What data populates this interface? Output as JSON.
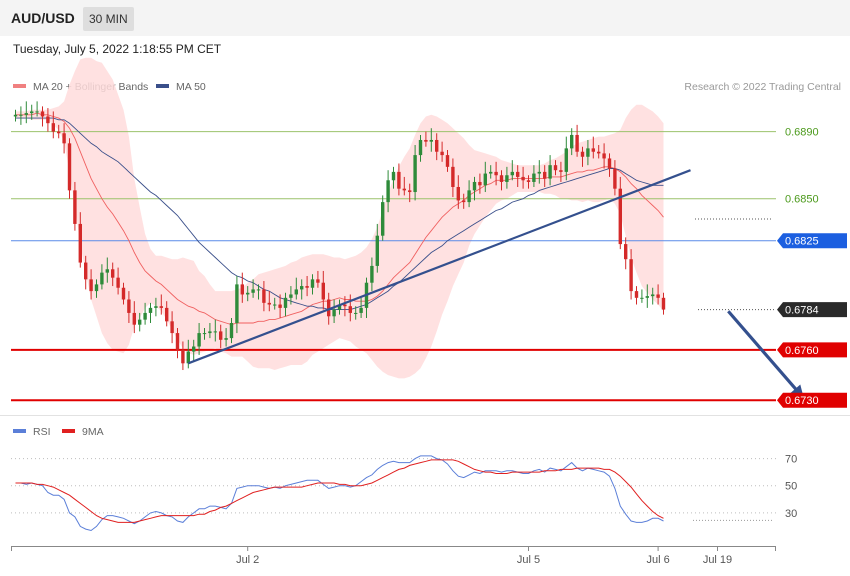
{
  "header": {
    "symbol": "AUD/USD",
    "timeframe": "30 MIN"
  },
  "datetime": "Tuesday, July 5, 2022 1:18:55 PM CET",
  "copyright": "Research © 2022 Trading Central",
  "colors": {
    "bull": "#2e8b3a",
    "bear": "#d42a2a",
    "band": "#ffdcdc",
    "ma20": "#f06060",
    "ma50": "#3a4f8a",
    "pivot": "#1c5fe0",
    "support": "#e00000",
    "resistance": "#9bc26b",
    "rsi": "#5b7fd8",
    "rsi_ma": "#e02020"
  },
  "chart_data": [
    {
      "type": "candlestick",
      "title": "",
      "legend": [
        {
          "name": "MA 20 + Bollinger Bands",
          "color": "#f08080"
        },
        {
          "name": "MA 50",
          "color": "#3a4f8a"
        }
      ],
      "legend_position": "top-left",
      "ylim": [
        0.6723,
        0.691
      ],
      "x_ticks": [
        {
          "label": "Jul 2",
          "index": 43
        },
        {
          "label": "Jul 5",
          "index": 95
        },
        {
          "label": "Jul 6",
          "index": 119
        },
        {
          "label": "Jul 19",
          "index": 130
        }
      ],
      "close": [
        0.69,
        0.69,
        0.6901,
        0.6902,
        0.6902,
        0.6899,
        0.6895,
        0.689,
        0.6889,
        0.6883,
        0.6855,
        0.6835,
        0.6812,
        0.6802,
        0.6795,
        0.6799,
        0.6806,
        0.6808,
        0.6803,
        0.6797,
        0.679,
        0.6782,
        0.6775,
        0.6778,
        0.6782,
        0.6785,
        0.6786,
        0.6785,
        0.6777,
        0.677,
        0.676,
        0.6752,
        0.6759,
        0.6762,
        0.677,
        0.677,
        0.6771,
        0.6771,
        0.6766,
        0.6767,
        0.6776,
        0.6799,
        0.6793,
        0.6794,
        0.6796,
        0.6796,
        0.6788,
        0.6787,
        0.6787,
        0.6785,
        0.6791,
        0.6793,
        0.6796,
        0.6798,
        0.6797,
        0.6802,
        0.68,
        0.679,
        0.678,
        0.6784,
        0.6787,
        0.6786,
        0.6782,
        0.6782,
        0.6785,
        0.68,
        0.681,
        0.6828,
        0.6848,
        0.6861,
        0.6866,
        0.6856,
        0.6855,
        0.6854,
        0.6876,
        0.6885,
        0.6884,
        0.6885,
        0.6878,
        0.6876,
        0.6869,
        0.6857,
        0.6849,
        0.6848,
        0.6855,
        0.686,
        0.6858,
        0.6865,
        0.6866,
        0.6864,
        0.686,
        0.6864,
        0.6866,
        0.6863,
        0.6861,
        0.686,
        0.6865,
        0.6866,
        0.6862,
        0.687,
        0.6867,
        0.6866,
        0.688,
        0.6888,
        0.6878,
        0.6875,
        0.688,
        0.6878,
        0.6877,
        0.6874,
        0.6868,
        0.6856,
        0.6823,
        0.6814,
        0.6795,
        0.6791,
        0.6791,
        0.6792,
        0.6793,
        0.6791,
        0.6784
      ],
      "ma20": [
        0.69,
        0.69,
        0.69,
        0.69,
        0.6901,
        0.69,
        0.69,
        0.6899,
        0.6898,
        0.6896,
        0.6892,
        0.6886,
        0.6878,
        0.687,
        0.6862,
        0.6856,
        0.685,
        0.6845,
        0.6841,
        0.6836,
        0.6831,
        0.6825,
        0.6818,
        0.6812,
        0.6807,
        0.6804,
        0.6801,
        0.6799,
        0.6796,
        0.6793,
        0.679,
        0.6788,
        0.6786,
        0.6785,
        0.6783,
        0.6782,
        0.678,
        0.6778,
        0.6777,
        0.6776,
        0.6775,
        0.6776,
        0.6776,
        0.6776,
        0.6776,
        0.6777,
        0.6777,
        0.6778,
        0.6778,
        0.6779,
        0.678,
        0.6781,
        0.6782,
        0.6783,
        0.6785,
        0.6787,
        0.6788,
        0.6789,
        0.6789,
        0.679,
        0.6791,
        0.679,
        0.679,
        0.6789,
        0.6789,
        0.6789,
        0.679,
        0.6792,
        0.6795,
        0.6799,
        0.6803,
        0.6806,
        0.6809,
        0.6812,
        0.6817,
        0.6822,
        0.6827,
        0.6831,
        0.6835,
        0.6839,
        0.6842,
        0.6845,
        0.6847,
        0.6849,
        0.6852,
        0.6854,
        0.6856,
        0.6858,
        0.6859,
        0.6861,
        0.6861,
        0.6861,
        0.6862,
        0.6862,
        0.6862,
        0.6862,
        0.6862,
        0.6862,
        0.6862,
        0.6863,
        0.6863,
        0.6863,
        0.6864,
        0.6865,
        0.6866,
        0.6866,
        0.6867,
        0.6867,
        0.6868,
        0.6869,
        0.6869,
        0.6868,
        0.6866,
        0.6863,
        0.6859,
        0.6856,
        0.6852,
        0.6849,
        0.6846,
        0.6843,
        0.6839
      ],
      "ma20_color": "#f08080",
      "bollinger_upper": [
        0.6902,
        0.6902,
        0.6902,
        0.6903,
        0.6903,
        0.6903,
        0.6903,
        0.6904,
        0.6905,
        0.6908,
        0.6918,
        0.6926,
        0.6933,
        0.6934,
        0.6934,
        0.6932,
        0.6931,
        0.6926,
        0.6921,
        0.6912,
        0.6903,
        0.6887,
        0.6862,
        0.6845,
        0.6829,
        0.682,
        0.6816,
        0.6816,
        0.6815,
        0.6814,
        0.6814,
        0.6815,
        0.6814,
        0.6813,
        0.6807,
        0.6804,
        0.6799,
        0.6795,
        0.6795,
        0.6795,
        0.6795,
        0.6796,
        0.6797,
        0.68,
        0.6802,
        0.6805,
        0.6806,
        0.6807,
        0.6808,
        0.6809,
        0.681,
        0.6812,
        0.6813,
        0.6815,
        0.6816,
        0.6817,
        0.6817,
        0.6817,
        0.6816,
        0.6815,
        0.6815,
        0.6814,
        0.6815,
        0.6816,
        0.6818,
        0.6821,
        0.6826,
        0.6833,
        0.6843,
        0.6853,
        0.6862,
        0.6869,
        0.6875,
        0.688,
        0.6888,
        0.6895,
        0.6899,
        0.69,
        0.6899,
        0.6897,
        0.6895,
        0.6892,
        0.6889,
        0.6886,
        0.6882,
        0.6879,
        0.6878,
        0.6877,
        0.6876,
        0.6875,
        0.6873,
        0.6872,
        0.6871,
        0.687,
        0.687,
        0.687,
        0.687,
        0.687,
        0.6871,
        0.6873,
        0.6874,
        0.6876,
        0.6878,
        0.6881,
        0.6883,
        0.6884,
        0.6885,
        0.6886,
        0.6887,
        0.6887,
        0.6888,
        0.6889,
        0.6891,
        0.6898,
        0.6903,
        0.6906,
        0.6906,
        0.6904,
        0.6902,
        0.6899,
        0.6895
      ],
      "bollinger_lower": [
        0.6898,
        0.6898,
        0.6898,
        0.6897,
        0.6897,
        0.6897,
        0.6897,
        0.6894,
        0.6891,
        0.6884,
        0.6866,
        0.6846,
        0.6823,
        0.6806,
        0.679,
        0.678,
        0.677,
        0.6764,
        0.676,
        0.6759,
        0.6758,
        0.6763,
        0.6774,
        0.6779,
        0.6785,
        0.6788,
        0.6786,
        0.6783,
        0.6778,
        0.6772,
        0.6766,
        0.6761,
        0.6758,
        0.6757,
        0.6758,
        0.6759,
        0.676,
        0.6761,
        0.6759,
        0.6758,
        0.6756,
        0.6756,
        0.6756,
        0.6753,
        0.675,
        0.6749,
        0.6749,
        0.6749,
        0.6748,
        0.6749,
        0.675,
        0.6751,
        0.6751,
        0.6751,
        0.6753,
        0.6757,
        0.6759,
        0.6761,
        0.6763,
        0.6765,
        0.6767,
        0.6766,
        0.6765,
        0.6762,
        0.676,
        0.6758,
        0.6754,
        0.675,
        0.6747,
        0.6745,
        0.6744,
        0.6743,
        0.6743,
        0.6744,
        0.6746,
        0.6749,
        0.6755,
        0.6762,
        0.6771,
        0.6781,
        0.6789,
        0.6798,
        0.6805,
        0.6812,
        0.6822,
        0.6829,
        0.6834,
        0.6839,
        0.6843,
        0.6847,
        0.6849,
        0.685,
        0.6852,
        0.6854,
        0.6854,
        0.6854,
        0.6854,
        0.6854,
        0.6853,
        0.6853,
        0.6852,
        0.685,
        0.685,
        0.6849,
        0.6849,
        0.6848,
        0.6849,
        0.6848,
        0.6848,
        0.6849,
        0.685,
        0.6847,
        0.6841,
        0.6828,
        0.6815,
        0.6806,
        0.6798,
        0.6794,
        0.679,
        0.6787,
        0.6783
      ],
      "ma50": [
        0.6898,
        0.6898,
        0.6898,
        0.6898,
        0.6898,
        0.6898,
        0.6898,
        0.6898,
        0.6897,
        0.6897,
        0.6895,
        0.6892,
        0.6889,
        0.6886,
        0.6883,
        0.6881,
        0.6878,
        0.6876,
        0.6874,
        0.6872,
        0.6869,
        0.6866,
        0.6863,
        0.686,
        0.6857,
        0.6854,
        0.6852,
        0.6849,
        0.6846,
        0.6843,
        0.684,
        0.6836,
        0.6832,
        0.6828,
        0.6824,
        0.6821,
        0.6818,
        0.6815,
        0.6812,
        0.6809,
        0.6806,
        0.6804,
        0.6803,
        0.6801,
        0.68,
        0.6798,
        0.6796,
        0.6795,
        0.6793,
        0.6791,
        0.679,
        0.6789,
        0.6788,
        0.6787,
        0.6786,
        0.6786,
        0.6785,
        0.6785,
        0.6784,
        0.6784,
        0.6784,
        0.6784,
        0.6784,
        0.6785,
        0.6786,
        0.6787,
        0.6789,
        0.6791,
        0.6793,
        0.6795,
        0.6798,
        0.68,
        0.6803,
        0.6806,
        0.6809,
        0.6812,
        0.6815,
        0.6818,
        0.682,
        0.6822,
        0.6825,
        0.6827,
        0.6829,
        0.6831,
        0.6833,
        0.6835,
        0.6837,
        0.6839,
        0.6841,
        0.6843,
        0.6844,
        0.6846,
        0.6848,
        0.6849,
        0.685,
        0.6852,
        0.6853,
        0.6855,
        0.6856,
        0.6857,
        0.6858,
        0.6859,
        0.686,
        0.6861,
        0.6862,
        0.6863,
        0.6864,
        0.6865,
        0.6866,
        0.6867,
        0.6868,
        0.6868,
        0.6867,
        0.6865,
        0.6863,
        0.6861,
        0.686,
        0.6859,
        0.6858,
        0.6858,
        0.6858
      ],
      "ma50_color": "#3a4f8a",
      "levels": [
        {
          "name": "resistance-2",
          "value": 0.689,
          "label": "0.6890",
          "kind": "resistance"
        },
        {
          "name": "resistance-1",
          "value": 0.685,
          "label": "0.6850",
          "kind": "resistance"
        },
        {
          "name": "pivot",
          "value": 0.6825,
          "label": "0.6825",
          "kind": "pivot"
        },
        {
          "name": "last-price",
          "value": 0.6784,
          "label": "0.6784",
          "kind": "last"
        },
        {
          "name": "support-1",
          "value": 0.676,
          "label": "0.6760",
          "kind": "support"
        },
        {
          "name": "support-2",
          "value": 0.673,
          "label": "0.6730",
          "kind": "support"
        }
      ],
      "trendline": {
        "from": [
          32,
          0.6752
        ],
        "to": [
          125,
          0.6867
        ]
      },
      "forecast_arrow": {
        "from": [
          132,
          0.6783
        ],
        "to": [
          146,
          0.6731
        ]
      }
    },
    {
      "type": "line",
      "title": "",
      "legend": [
        {
          "name": "RSI",
          "color": "#5b7fd8"
        },
        {
          "name": "9MA",
          "color": "#e02020"
        }
      ],
      "legend_position": "top-left",
      "ylim": [
        10,
        80
      ],
      "y_ticks": [
        70,
        50,
        30
      ],
      "rsi": [
        52,
        52,
        51,
        52,
        51,
        50,
        45,
        43,
        43,
        40,
        30,
        27,
        20,
        18,
        17,
        20,
        25,
        28,
        28,
        27,
        26,
        24,
        22,
        24,
        27,
        30,
        31,
        30,
        28,
        27,
        24,
        23,
        27,
        30,
        33,
        33,
        35,
        35,
        34,
        33,
        37,
        48,
        49,
        50,
        50,
        50,
        49,
        48,
        49,
        48,
        50,
        51,
        52,
        53,
        54,
        54,
        54,
        51,
        48,
        49,
        50,
        50,
        49,
        50,
        53,
        56,
        58,
        62,
        65,
        67,
        68,
        67,
        67,
        67,
        70,
        72,
        72,
        72,
        70,
        69,
        66,
        61,
        57,
        56,
        58,
        60,
        59,
        61,
        61,
        61,
        60,
        61,
        61,
        60,
        59,
        59,
        61,
        62,
        60,
        63,
        62,
        61,
        64,
        67,
        63,
        61,
        63,
        62,
        61,
        60,
        57,
        48,
        35,
        29,
        24,
        23,
        23,
        24,
        26,
        26,
        24
      ],
      "rsi_ma": [
        52,
        52,
        52,
        52,
        51,
        51,
        50,
        49,
        47,
        45,
        43,
        40,
        37,
        34,
        31,
        28,
        26,
        25,
        24,
        23,
        23,
        23,
        23,
        24,
        25,
        26,
        27,
        28,
        28,
        28,
        28,
        28,
        28,
        28,
        29,
        29,
        31,
        32,
        34,
        35,
        37,
        39,
        41,
        43,
        45,
        46,
        47,
        48,
        49,
        49,
        49,
        49,
        49,
        49,
        50,
        51,
        52,
        52,
        52,
        52,
        51,
        51,
        50,
        50,
        50,
        51,
        52,
        54,
        56,
        58,
        60,
        62,
        63,
        65,
        66,
        67,
        68,
        69,
        69,
        69,
        69,
        69,
        68,
        66,
        64,
        62,
        61,
        60,
        60,
        59,
        59,
        59,
        60,
        60,
        60,
        60,
        60,
        60,
        61,
        61,
        61,
        62,
        62,
        62,
        63,
        63,
        63,
        63,
        63,
        62,
        62,
        60,
        57,
        53,
        49,
        44,
        39,
        35,
        31,
        28,
        26
      ],
      "ma_length": 9
    }
  ]
}
